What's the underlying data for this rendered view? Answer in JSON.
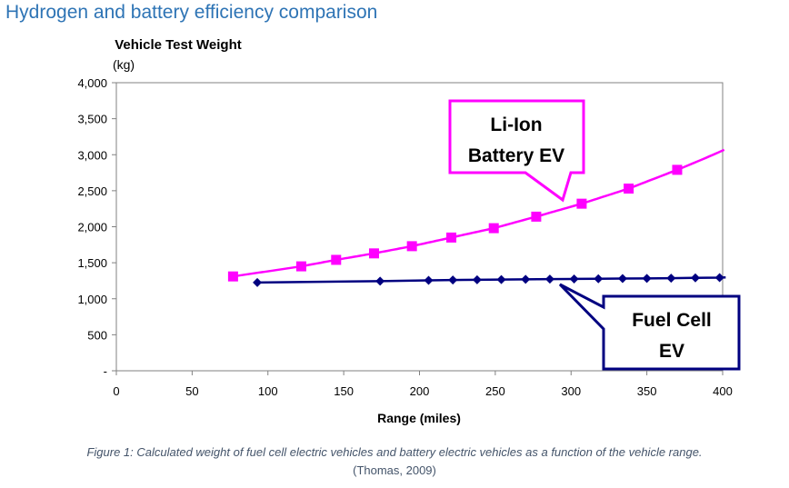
{
  "heading": "Hydrogen and battery efficiency comparison",
  "caption": "Figure 1: Calculated weight of fuel cell electric vehicles and battery electric vehicles as a function of the vehicle range.",
  "source": "(Thomas, 2009)",
  "chart_data": {
    "type": "line",
    "title": "Vehicle Test Weight",
    "ylabel": "(kg)",
    "xlabel": "Range (miles)",
    "xlim": [
      0,
      400
    ],
    "ylim": [
      0,
      4000
    ],
    "x_ticks": [
      0,
      50,
      100,
      150,
      200,
      250,
      300,
      350,
      400
    ],
    "x_tick_labels": [
      "0",
      "50",
      "100",
      "150",
      "200",
      "250",
      "300",
      "350",
      "400"
    ],
    "y_ticks": [
      0,
      500,
      1000,
      1500,
      2000,
      2500,
      3000,
      3500,
      4000
    ],
    "y_tick_labels": [
      "-",
      "500",
      "1,000",
      "1,500",
      "2,000",
      "2,500",
      "3,000",
      "3,500",
      "4,000"
    ],
    "grid": false,
    "series": [
      {
        "name": "Li-Ion Battery EV",
        "color": "#ff00ff",
        "marker": "square",
        "x": [
          77,
          122,
          145,
          170,
          195,
          221,
          249,
          277,
          307,
          338,
          370
        ],
        "y": [
          1310,
          1450,
          1540,
          1630,
          1730,
          1850,
          1980,
          2140,
          2320,
          2530,
          2790
        ],
        "line_x": [
          77,
          402
        ],
        "line_fn": "battery"
      },
      {
        "name": "Fuel Cell EV",
        "color": "#000080",
        "marker": "diamond",
        "x": [
          93,
          174,
          206,
          222,
          238,
          254,
          270,
          286,
          302,
          318,
          334,
          350,
          366,
          382,
          398
        ],
        "y": [
          1225,
          1245,
          1255,
          1260,
          1263,
          1267,
          1270,
          1273,
          1275,
          1278,
          1280,
          1283,
          1286,
          1290,
          1293
        ],
        "line_x": [
          93,
          402
        ]
      }
    ],
    "callouts": [
      {
        "name": "battery-callout",
        "lines": [
          "Li-Ion",
          "Battery EV"
        ],
        "color": "#ff00ff"
      },
      {
        "name": "fuelcell-callout",
        "lines": [
          "Fuel Cell",
          "EV"
        ],
        "color": "#000080"
      }
    ]
  }
}
